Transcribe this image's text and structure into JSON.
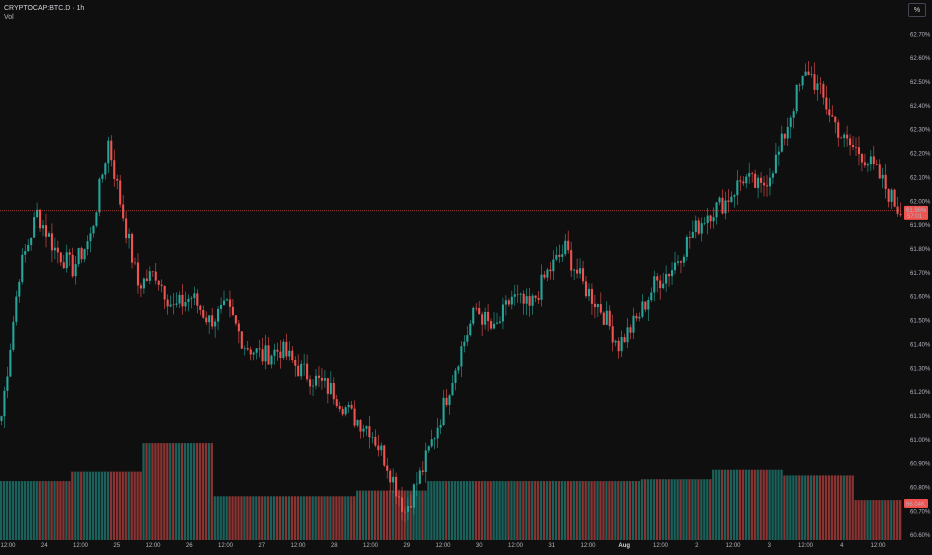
{
  "legend": {
    "symbol": "CRYPTOCAP:BTC.D · 1h",
    "volume_label": "Vol"
  },
  "unit_button": "%",
  "price_axis": {
    "labels": [
      "62.70%",
      "62.60%",
      "62.50%",
      "62.40%",
      "62.30%",
      "62.20%",
      "62.10%",
      "62.00%",
      "61.90%",
      "61.80%",
      "61.70%",
      "61.60%",
      "61.50%",
      "61.40%",
      "61.30%",
      "61.20%",
      "61.10%",
      "61.00%",
      "60.90%",
      "60.80%",
      "60.70%",
      "60.60%"
    ],
    "current_price_label": "61.96%",
    "current_time_label": "57:01",
    "volume_badge": "66.04K"
  },
  "time_axis": {
    "labels": [
      "12:00",
      "24",
      "12:00",
      "25",
      "12:00",
      "26",
      "12:00",
      "27",
      "12:00",
      "28",
      "12:00",
      "29",
      "12:00",
      "30",
      "12:00",
      "31",
      "12:00",
      "Aug",
      "12:00",
      "2",
      "12:00",
      "3",
      "12:00",
      "4",
      "12:00"
    ],
    "bold_index": 17
  },
  "colors": {
    "up": "#26a69a",
    "down": "#ef5350",
    "background": "#0f0f0f",
    "price_line": "#ef5350"
  },
  "chart_data": {
    "type": "candlestick",
    "interval": "1h",
    "ylim": [
      60.58,
      62.76
    ],
    "x_start": "Jul 23 12:00",
    "x_end": "Aug 4 12:00",
    "close_path": [
      [
        0,
        61.1
      ],
      [
        6,
        61.7
      ],
      [
        12,
        61.95
      ],
      [
        18,
        61.8
      ],
      [
        24,
        61.72
      ],
      [
        30,
        61.85
      ],
      [
        36,
        62.25
      ],
      [
        40,
        62.0
      ],
      [
        46,
        61.65
      ],
      [
        52,
        61.7
      ],
      [
        58,
        61.55
      ],
      [
        64,
        61.6
      ],
      [
        70,
        61.5
      ],
      [
        76,
        61.55
      ],
      [
        82,
        61.4
      ],
      [
        88,
        61.35
      ],
      [
        94,
        61.38
      ],
      [
        100,
        61.3
      ],
      [
        106,
        61.25
      ],
      [
        112,
        61.2
      ],
      [
        118,
        61.1
      ],
      [
        124,
        61.05
      ],
      [
        130,
        60.9
      ],
      [
        136,
        60.7
      ],
      [
        142,
        60.88
      ],
      [
        148,
        61.1
      ],
      [
        154,
        61.35
      ],
      [
        160,
        61.55
      ],
      [
        166,
        61.45
      ],
      [
        172,
        61.6
      ],
      [
        178,
        61.55
      ],
      [
        184,
        61.7
      ],
      [
        190,
        61.8
      ],
      [
        196,
        61.65
      ],
      [
        202,
        61.55
      ],
      [
        208,
        61.4
      ],
      [
        214,
        61.5
      ],
      [
        220,
        61.65
      ],
      [
        226,
        61.72
      ],
      [
        232,
        61.85
      ],
      [
        238,
        61.95
      ],
      [
        244,
        62.0
      ],
      [
        250,
        62.1
      ],
      [
        256,
        62.05
      ],
      [
        262,
        62.2
      ],
      [
        268,
        62.45
      ],
      [
        272,
        62.55
      ],
      [
        278,
        62.4
      ],
      [
        284,
        62.25
      ],
      [
        290,
        62.2
      ],
      [
        296,
        62.1
      ],
      [
        302,
        61.97
      ],
      [
        304,
        61.96
      ]
    ],
    "volume": {
      "ylim": [
        0,
        8
      ],
      "segments": [
        {
          "from": 0,
          "to": 24,
          "value": 3.1
        },
        {
          "from": 24,
          "to": 48,
          "value": 3.6
        },
        {
          "from": 48,
          "to": 72,
          "value": 5.1
        },
        {
          "from": 72,
          "to": 96,
          "value": 2.3
        },
        {
          "from": 96,
          "to": 120,
          "value": 2.3
        },
        {
          "from": 120,
          "to": 144,
          "value": 2.6
        },
        {
          "from": 144,
          "to": 168,
          "value": 3.1
        },
        {
          "from": 168,
          "to": 192,
          "value": 3.1
        },
        {
          "from": 192,
          "to": 216,
          "value": 3.1
        },
        {
          "from": 216,
          "to": 240,
          "value": 3.2
        },
        {
          "from": 240,
          "to": 264,
          "value": 3.7
        },
        {
          "from": 264,
          "to": 288,
          "value": 3.4
        },
        {
          "from": 288,
          "to": 304,
          "value": 2.1
        }
      ]
    }
  }
}
